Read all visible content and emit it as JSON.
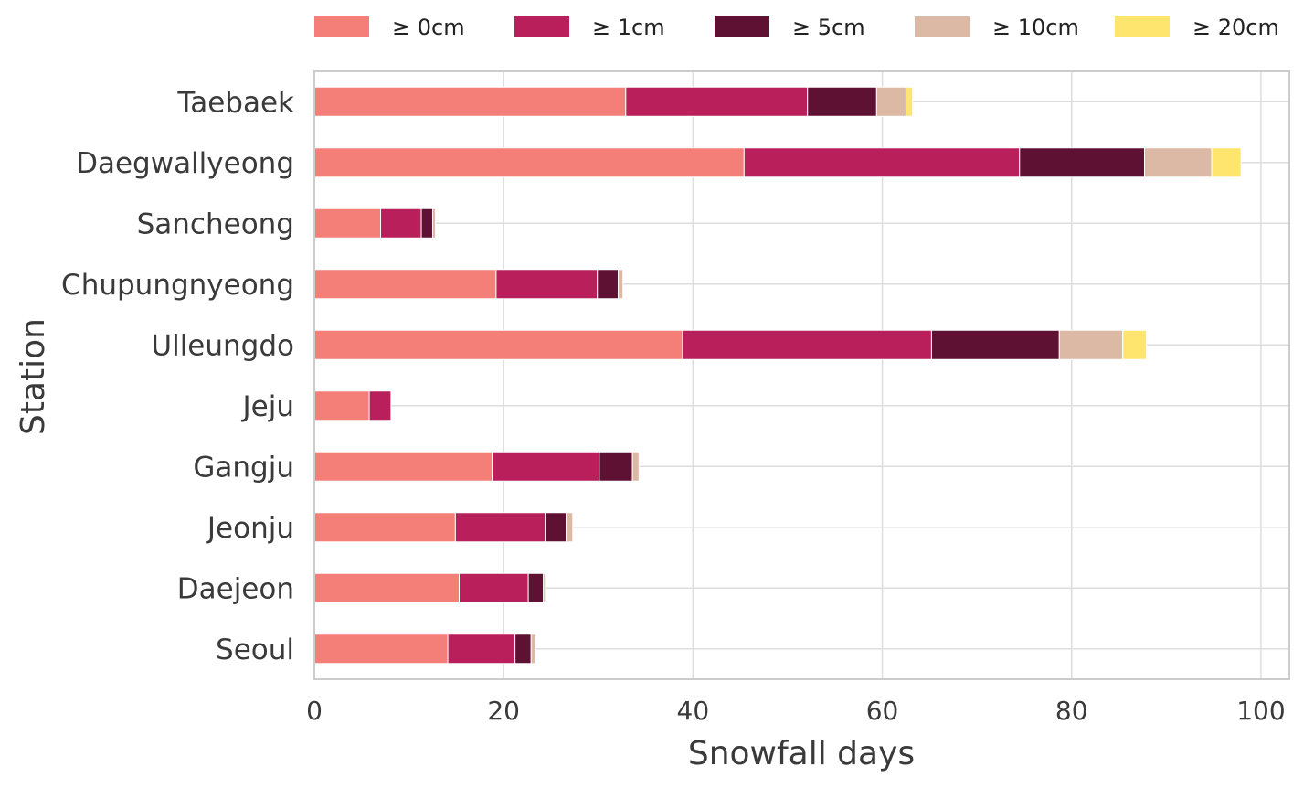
{
  "chart_data": {
    "type": "bar",
    "orientation": "horizontal",
    "stacked": true,
    "title": "",
    "xlabel": "Snowfall days",
    "ylabel": "Station",
    "xlim": [
      0,
      103
    ],
    "xticks": [
      0,
      20,
      40,
      60,
      80,
      100
    ],
    "grid": true,
    "legend_position": "top",
    "categories": [
      "Taebaek",
      "Daegwallyeong",
      "Sancheong",
      "Chupungnyeong",
      "Ulleungdo",
      "Jeju",
      "Gangju",
      "Jeonju",
      "Daejeon",
      "Seoul"
    ],
    "series": [
      {
        "name": "≥ 0cm",
        "color": "#f47f78",
        "values": [
          32.9,
          45.4,
          7.0,
          19.2,
          38.9,
          5.8,
          18.8,
          14.9,
          15.3,
          14.1
        ]
      },
      {
        "name": "≥ 1cm",
        "color": "#b81f5b",
        "values": [
          19.2,
          29.1,
          4.3,
          10.7,
          26.3,
          2.3,
          11.3,
          9.5,
          7.3,
          7.1
        ]
      },
      {
        "name": "≥ 5cm",
        "color": "#5f1133",
        "values": [
          7.3,
          13.2,
          1.2,
          2.2,
          13.5,
          0.0,
          3.5,
          2.2,
          1.6,
          1.7
        ]
      },
      {
        "name": "≥ 10cm",
        "color": "#dcb9a4",
        "values": [
          3.1,
          7.1,
          0.3,
          0.5,
          6.7,
          0.0,
          0.7,
          0.7,
          0.2,
          0.5
        ]
      },
      {
        "name": "≥ 20cm",
        "color": "#fee56e",
        "values": [
          0.7,
          3.1,
          0.0,
          0.0,
          2.5,
          0.0,
          0.0,
          0.0,
          0.0,
          0.0
        ]
      }
    ]
  }
}
